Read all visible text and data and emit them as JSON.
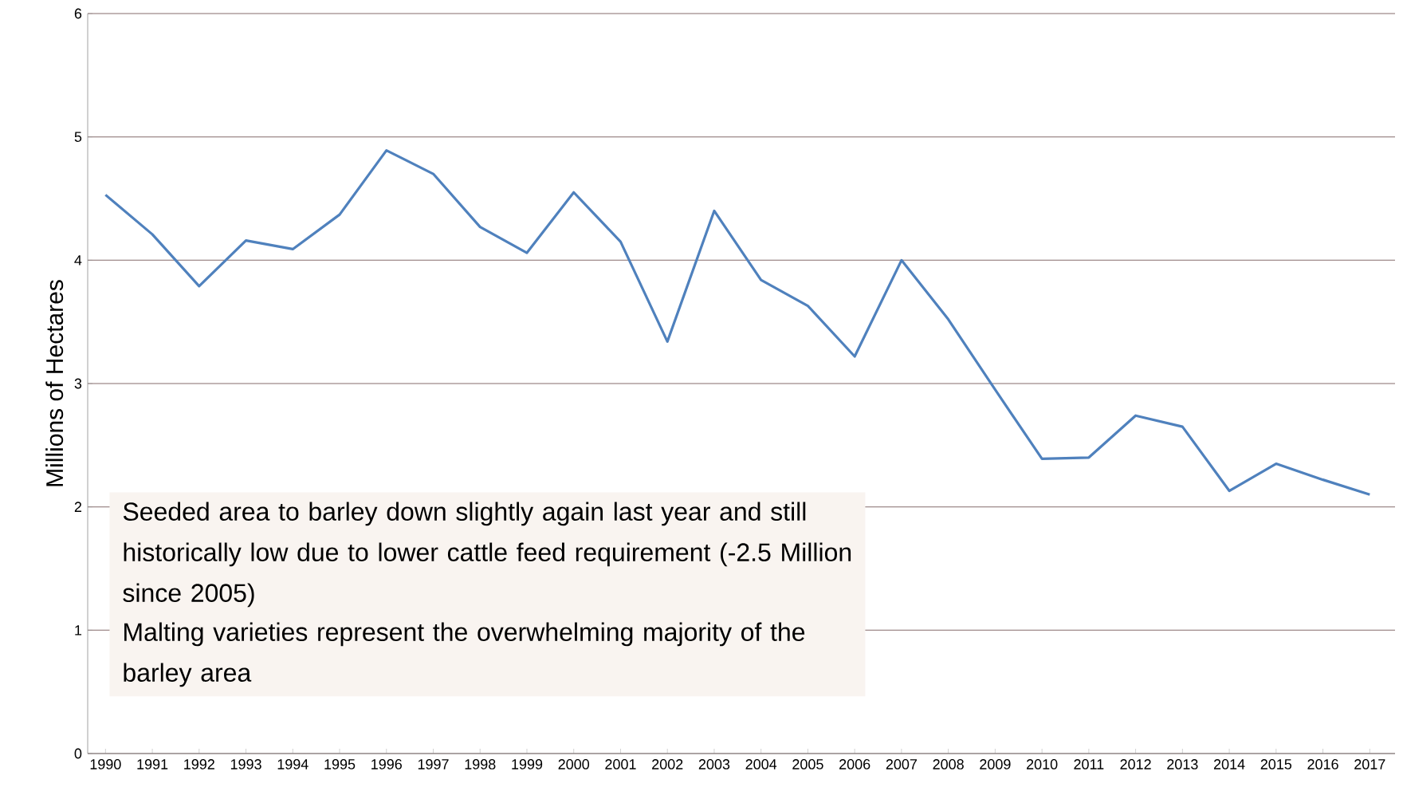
{
  "chart_data": {
    "type": "line",
    "ylabel": "Millions of Hectares",
    "categories": [
      "1990",
      "1991",
      "1992",
      "1993",
      "1994",
      "1995",
      "1996",
      "1997",
      "1998",
      "1999",
      "2000",
      "2001",
      "2002",
      "2003",
      "2004",
      "2005",
      "2006",
      "2007",
      "2008",
      "2009",
      "2010",
      "2011",
      "2012",
      "2013",
      "2014",
      "2015",
      "2016",
      "2017"
    ],
    "values": [
      4.53,
      4.21,
      3.79,
      4.16,
      4.09,
      4.37,
      4.89,
      4.7,
      4.27,
      4.06,
      4.55,
      4.15,
      3.34,
      4.4,
      3.84,
      3.63,
      3.22,
      4.0,
      3.52,
      2.95,
      2.39,
      2.4,
      2.74,
      2.65,
      2.13,
      2.35,
      2.22,
      2.1
    ],
    "color": "#4f81bd",
    "ylim": [
      0,
      6
    ],
    "yticks": [
      0,
      1,
      2,
      3,
      4,
      5,
      6
    ],
    "grid": "y",
    "marker": "none",
    "line_style": "solid",
    "annotations": [
      "Seeded area to barley down slightly again last year and still historically low due to lower cattle feed requirement (-2.5 Million since 2005)",
      "Malting varieties represent the overwhelming majority of the barley area"
    ]
  }
}
